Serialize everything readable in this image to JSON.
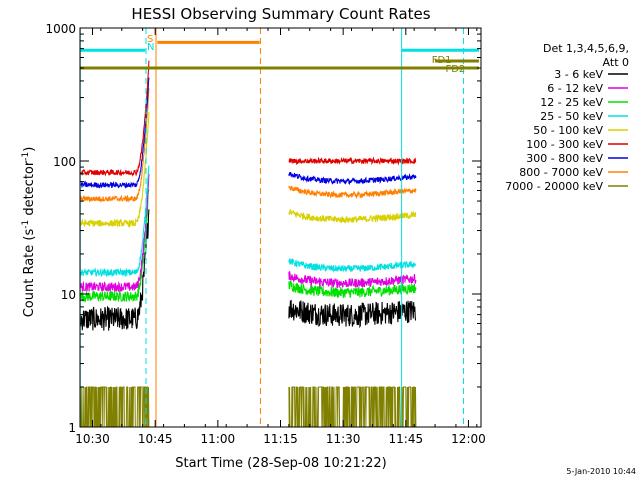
{
  "chart_data": {
    "type": "line",
    "title": "HESSI Observing Summary Count Rates",
    "xlabel": "Start Time (28-Sep-08 10:21:22)",
    "ylabel_main": "Count Rate (s",
    "ylabel_sup1": "-1",
    "ylabel_mid": " detector",
    "ylabel_sup2": "-1",
    "ylabel_end": ")",
    "yscale": "log",
    "ylim": [
      1,
      1000
    ],
    "xlim_minutes_of_day": [
      627,
      723
    ],
    "x_ticks": [
      {
        "label": "10:30",
        "value": 630
      },
      {
        "label": "10:45",
        "value": 645
      },
      {
        "label": "11:00",
        "value": 660
      },
      {
        "label": "11:15",
        "value": 675
      },
      {
        "label": "11:30",
        "value": 690
      },
      {
        "label": "11:45",
        "value": 705
      },
      {
        "label": "12:00",
        "value": 720
      }
    ],
    "y_ticks": [
      {
        "label": "1",
        "value": 1
      },
      {
        "label": "10",
        "value": 10
      },
      {
        "label": "100",
        "value": 100
      },
      {
        "label": "1000",
        "value": 1000
      }
    ],
    "legend": {
      "placement": "right",
      "header1": "Det 1,3,4,5,6,9,",
      "header2": "Att 0"
    },
    "series": [
      {
        "name": "3 - 6 keV",
        "color": "#000000",
        "level": 6.5,
        "noise": 0.09
      },
      {
        "name": "6 - 12 keV",
        "color": "#e000e0",
        "level": 11.3,
        "noise": 0.035
      },
      {
        "name": "12 - 25 keV",
        "color": "#00e000",
        "level": 9.6,
        "noise": 0.04
      },
      {
        "name": "25 - 50 keV",
        "color": "#00e0e0",
        "level": 14.5,
        "noise": 0.025
      },
      {
        "name": "50 - 100 keV",
        "color": "#d8d000",
        "level": 34,
        "noise": 0.025
      },
      {
        "name": "100 - 300 keV",
        "color": "#e00000",
        "level": 82,
        "noise": 0.02
      },
      {
        "name": "300 - 800 keV",
        "color": "#0000e0",
        "level": 66,
        "noise": 0.02
      },
      {
        "name": "800 - 7000 keV",
        "color": "#ff8000",
        "level": 52,
        "noise": 0.02
      },
      {
        "name": "7000 - 20000 keV",
        "color": "#808000",
        "level": 1.0,
        "noise": 0
      }
    ],
    "segments": [
      {
        "start": 627.2,
        "end": 643.5,
        "rise_from": 640.3
      },
      {
        "start": 677.0,
        "end": 707.5,
        "rise_from": null
      }
    ],
    "markers": {
      "attenuator_label": "A",
      "night_line_color": "#ff8000",
      "saa_line_color": "#00e0e0",
      "night": {
        "value": 645.2,
        "label": "N"
      },
      "night_dashed_end": 670.2,
      "night_bar": {
        "from": 645.5,
        "to": 670.0,
        "level": 780
      },
      "saa_dashed_start": 642.8,
      "saa_solid_start": 704.0,
      "saa_dashed_end": 718.8,
      "saa_bar1": {
        "from": 627.0,
        "to": 642.6,
        "level": 680
      },
      "saa_bar2": {
        "from": 704.0,
        "to": 722.5,
        "level": 680
      },
      "saa_label": "S",
      "fd_bar": {
        "from": 627.0,
        "to": 722.5,
        "level": 500
      },
      "fd_bar2": {
        "from": 712.0,
        "to": 722.5,
        "level": 565
      },
      "fd1_label": "FD1",
      "fd2_label": "FD2"
    }
  },
  "timestamp": "5-Jan-2010 10:44"
}
